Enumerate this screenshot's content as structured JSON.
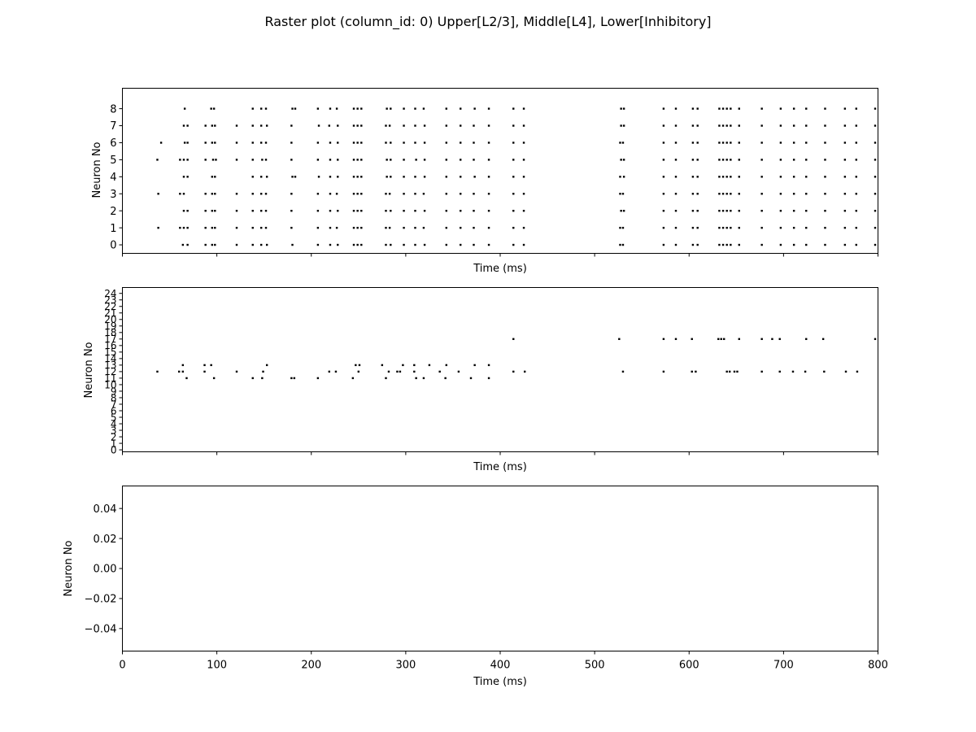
{
  "figure": {
    "title": "Raster plot (column_id: 0) Upper[L2/3], Middle[L4], Lower[Inhibitory]"
  },
  "chart_data": [
    {
      "type": "scatter",
      "panel": "upper",
      "xlabel": "Time (ms)",
      "ylabel": "Neuron No",
      "xlim": [
        0,
        800
      ],
      "ylim": [
        -0.5,
        9.2
      ],
      "x_ticks": [
        0,
        100,
        200,
        300,
        400,
        500,
        600,
        700,
        800
      ],
      "x_tick_labels_shown": false,
      "y_ticks": [
        0,
        1,
        2,
        3,
        4,
        5,
        6,
        7,
        8
      ],
      "y_tick_labels": [
        "0",
        "1",
        "2",
        "3",
        "4",
        "5",
        "6",
        "7",
        "8"
      ],
      "marker_color": "#000000",
      "series": [
        {
          "neuron": 8,
          "x": [
            66,
            94,
            97,
            138,
            147,
            152,
            180,
            183,
            207,
            220,
            227,
            245,
            249,
            253,
            280,
            284,
            298,
            310,
            319,
            343,
            358,
            373,
            388,
            414,
            425,
            528,
            531,
            573,
            586,
            604,
            609,
            632,
            636,
            640,
            644,
            653,
            677,
            697,
            711,
            724,
            744,
            765,
            777,
            797
          ]
        },
        {
          "neuron": 7,
          "x": [
            65,
            69,
            88,
            95,
            98,
            121,
            138,
            147,
            153,
            179,
            208,
            219,
            228,
            245,
            249,
            253,
            279,
            283,
            298,
            310,
            320,
            343,
            358,
            372,
            388,
            414,
            425,
            528,
            531,
            573,
            586,
            604,
            609,
            632,
            636,
            640,
            644,
            653,
            677,
            697,
            711,
            724,
            744,
            765,
            777,
            797
          ]
        },
        {
          "neuron": 6,
          "x": [
            41,
            66,
            69,
            88,
            95,
            98,
            121,
            138,
            147,
            152,
            179,
            207,
            220,
            228,
            245,
            249,
            253,
            279,
            284,
            298,
            310,
            320,
            343,
            358,
            372,
            388,
            414,
            425,
            527,
            530,
            573,
            586,
            604,
            609,
            632,
            636,
            640,
            644,
            653,
            677,
            697,
            711,
            724,
            744,
            765,
            777,
            797
          ]
        },
        {
          "neuron": 5,
          "x": [
            37,
            61,
            65,
            69,
            88,
            96,
            99,
            121,
            138,
            148,
            152,
            179,
            207,
            220,
            228,
            245,
            249,
            253,
            280,
            284,
            298,
            311,
            320,
            343,
            358,
            372,
            388,
            414,
            425,
            528,
            531,
            573,
            586,
            604,
            609,
            632,
            636,
            640,
            644,
            653,
            677,
            697,
            711,
            724,
            744,
            765,
            777,
            797
          ]
        },
        {
          "neuron": 4,
          "x": [
            65,
            69,
            95,
            98,
            138,
            147,
            153,
            180,
            183,
            208,
            220,
            228,
            245,
            249,
            253,
            280,
            284,
            298,
            310,
            320,
            343,
            358,
            373,
            388,
            414,
            425,
            527,
            531,
            573,
            586,
            604,
            609,
            632,
            636,
            640,
            644,
            653,
            677,
            697,
            711,
            724,
            744,
            765,
            777,
            797
          ]
        },
        {
          "neuron": 3,
          "x": [
            38,
            61,
            65,
            88,
            95,
            98,
            121,
            138,
            147,
            152,
            179,
            207,
            220,
            227,
            245,
            249,
            253,
            279,
            283,
            298,
            310,
            319,
            343,
            358,
            372,
            388,
            414,
            425,
            527,
            530,
            573,
            586,
            604,
            609,
            632,
            636,
            640,
            644,
            653,
            677,
            697,
            711,
            724,
            744,
            765,
            777,
            797
          ]
        },
        {
          "neuron": 2,
          "x": [
            65,
            69,
            88,
            95,
            98,
            121,
            138,
            147,
            152,
            179,
            207,
            220,
            228,
            245,
            249,
            253,
            279,
            284,
            298,
            310,
            320,
            343,
            358,
            372,
            388,
            414,
            425,
            528,
            531,
            573,
            586,
            604,
            609,
            632,
            636,
            640,
            644,
            653,
            677,
            697,
            711,
            724,
            744,
            765,
            777,
            797
          ]
        },
        {
          "neuron": 1,
          "x": [
            38,
            61,
            65,
            69,
            88,
            95,
            98,
            121,
            138,
            147,
            152,
            179,
            207,
            220,
            227,
            245,
            249,
            253,
            279,
            283,
            298,
            310,
            319,
            343,
            358,
            372,
            388,
            414,
            425,
            527,
            530,
            573,
            586,
            604,
            609,
            632,
            636,
            640,
            644,
            653,
            677,
            697,
            711,
            724,
            744,
            765,
            777,
            797
          ]
        },
        {
          "neuron": 0,
          "x": [
            64,
            69,
            88,
            95,
            98,
            121,
            138,
            147,
            153,
            180,
            207,
            220,
            228,
            245,
            249,
            253,
            279,
            284,
            298,
            310,
            320,
            343,
            358,
            372,
            388,
            414,
            425,
            527,
            530,
            573,
            586,
            604,
            609,
            632,
            636,
            640,
            644,
            653,
            677,
            697,
            711,
            724,
            744,
            765,
            777,
            797
          ]
        }
      ]
    },
    {
      "type": "scatter",
      "panel": "middle",
      "xlabel": "Time (ms)",
      "ylabel": "Neuron No",
      "xlim": [
        0,
        800
      ],
      "ylim": [
        -0.3,
        24.9
      ],
      "x_ticks": [
        0,
        100,
        200,
        300,
        400,
        500,
        600,
        700,
        800
      ],
      "x_tick_labels_shown": false,
      "y_ticks": [
        0,
        1,
        2,
        3,
        4,
        5,
        6,
        7,
        8,
        9,
        10,
        11,
        12,
        13,
        14,
        15,
        16,
        17,
        18,
        19,
        20,
        21,
        22,
        23,
        24
      ],
      "y_tick_labels": [
        "0",
        "1",
        "2",
        "3",
        "4",
        "5",
        "6",
        "7",
        "8",
        "9",
        "10",
        "11",
        "12",
        "13",
        "14",
        "15",
        "16",
        "17",
        "18",
        "19",
        "20",
        "21",
        "22",
        "23",
        "24"
      ],
      "marker_color": "#000000",
      "series": [
        {
          "neuron": 17,
          "x": [
            414,
            526,
            573,
            586,
            603,
            631,
            634,
            637,
            653,
            677,
            688,
            696,
            724,
            742,
            797
          ]
        },
        {
          "neuron": 13,
          "x": [
            64,
            87,
            94,
            153,
            247,
            251,
            275,
            297,
            309,
            325,
            343,
            373,
            388
          ]
        },
        {
          "neuron": 12,
          "x": [
            37,
            60,
            64,
            87,
            121,
            149,
            219,
            226,
            250,
            282,
            291,
            294,
            309,
            336,
            356,
            414,
            426,
            530,
            573,
            603,
            607,
            640,
            643,
            648,
            651,
            677,
            696,
            710,
            723,
            743,
            766,
            778
          ]
        },
        {
          "neuron": 11,
          "x": [
            68,
            97,
            138,
            148,
            179,
            182,
            207,
            244,
            279,
            311,
            319,
            342,
            369,
            388
          ]
        }
      ]
    },
    {
      "type": "scatter",
      "panel": "lower",
      "xlabel": "Time (ms)",
      "ylabel": "Neuron No",
      "xlim": [
        0,
        800
      ],
      "ylim": [
        -0.055,
        0.055
      ],
      "x_ticks": [
        0,
        100,
        200,
        300,
        400,
        500,
        600,
        700,
        800
      ],
      "x_tick_labels": [
        "0",
        "100",
        "200",
        "300",
        "400",
        "500",
        "600",
        "700",
        "800"
      ],
      "x_tick_labels_shown": true,
      "y_ticks": [
        0.04,
        0.02,
        0.0,
        -0.02,
        -0.04
      ],
      "y_tick_labels": [
        "0.04",
        "0.02",
        "0.00",
        "−0.02",
        "−0.04"
      ],
      "marker_color": "#000000",
      "series": []
    }
  ]
}
